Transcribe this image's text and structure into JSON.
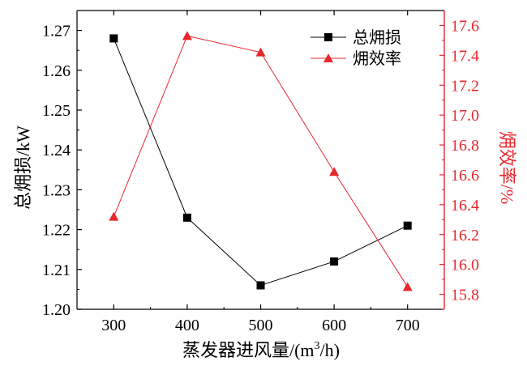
{
  "chart_data": {
    "type": "line",
    "xlabel": "蒸发器进风量/(m",
    "xlabel_sup": "3",
    "xlabel_tail": "/h)",
    "x": [
      300,
      400,
      500,
      600,
      700
    ],
    "xticks": [
      "300",
      "400",
      "500",
      "600",
      "700"
    ],
    "xlim": [
      250,
      750
    ],
    "y_left": {
      "label": "总㶲损/kW",
      "ylim": [
        1.2,
        1.275
      ],
      "ticks": [
        "1.20",
        "1.21",
        "1.22",
        "1.23",
        "1.24",
        "1.25",
        "1.26",
        "1.27"
      ],
      "color": "#000000"
    },
    "y_right": {
      "label": "㶲效率/%",
      "ylim": [
        15.7,
        17.7
      ],
      "ticks": [
        "15.8",
        "16.0",
        "16.2",
        "16.4",
        "16.6",
        "16.8",
        "17.0",
        "17.2",
        "17.4",
        "17.6"
      ],
      "color": "#e8262b"
    },
    "series": [
      {
        "name": "总㶲损",
        "axis": "left",
        "marker": "square",
        "color": "#000000",
        "values": [
          1.268,
          1.223,
          1.206,
          1.212,
          1.221
        ]
      },
      {
        "name": "㶲效率",
        "axis": "right",
        "marker": "triangle",
        "color": "#e8262b",
        "values": [
          16.32,
          17.53,
          17.42,
          16.62,
          15.85
        ]
      }
    ],
    "legend_position": "top-right",
    "grid": false
  }
}
